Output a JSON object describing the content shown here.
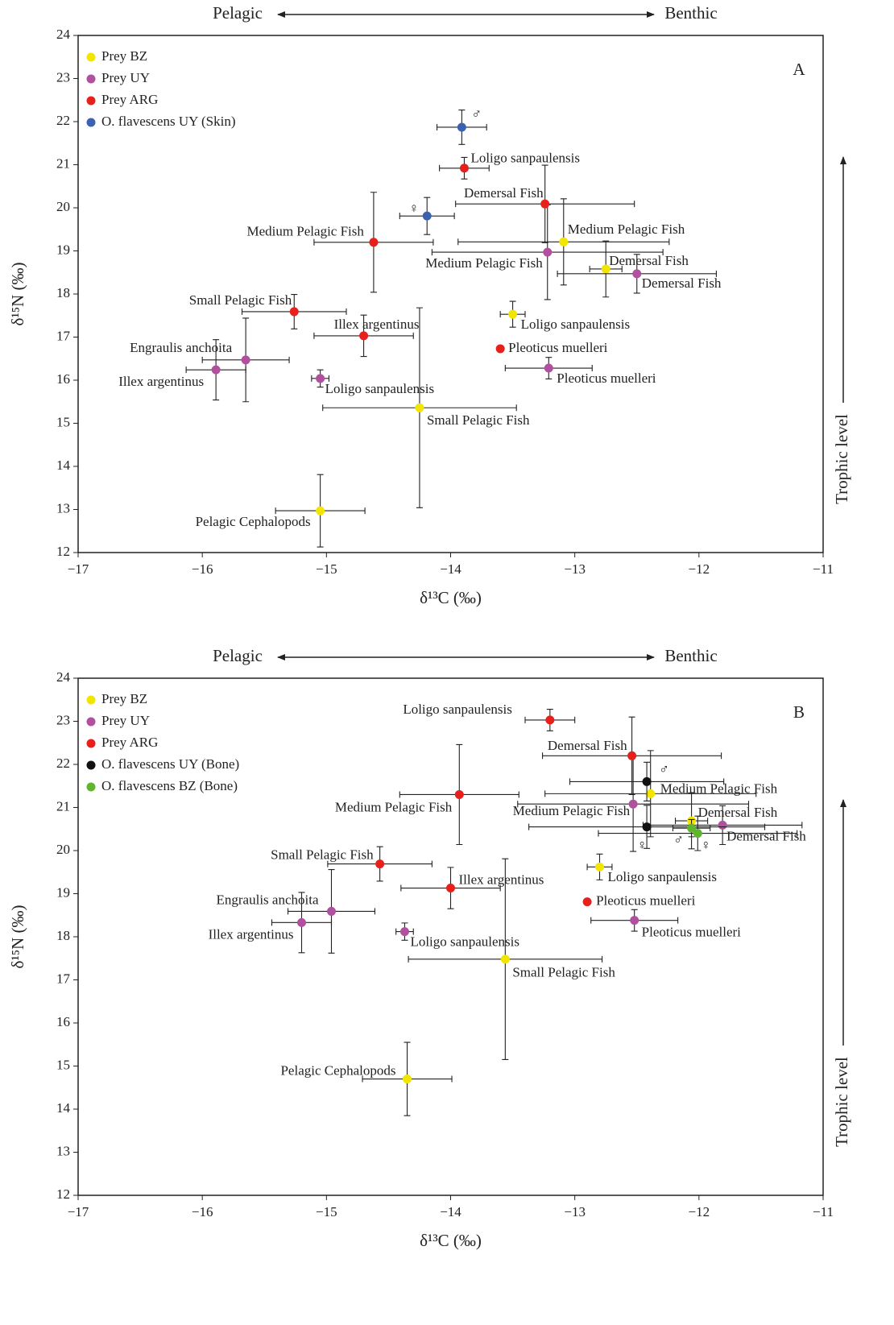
{
  "chart_data": [
    {
      "type": "scatter",
      "panel": "A",
      "x_label": "δ¹³C (‰)",
      "y_label": "δ¹⁵N (‰)",
      "left_annotation": "Pelagic",
      "right_annotation": "Benthic",
      "side_annotation": "Trophic level",
      "legend": "upper left",
      "xlim": [
        -17,
        -11
      ],
      "ylim": [
        12,
        24
      ],
      "xticks": [
        {
          "value": -17,
          "label": "−17"
        },
        {
          "value": -16,
          "label": "−16"
        },
        {
          "value": -15,
          "label": "−15"
        },
        {
          "value": -14,
          "label": "−14"
        },
        {
          "value": -13,
          "label": "−13"
        },
        {
          "value": -12,
          "label": "−12"
        },
        {
          "value": -11,
          "label": "−11"
        }
      ],
      "yticks": [
        12,
        13,
        14,
        15,
        16,
        17,
        18,
        19,
        20,
        21,
        22,
        23,
        24
      ],
      "series": [
        {
          "name": "Prey BZ",
          "color": "#f2e600",
          "labels": [
            "Medium Pelagic Fish",
            "Demersal Fish",
            "Loligo sanpaulensis",
            "Small Pelagic Fish",
            "Pelagic Cephalopods"
          ],
          "x": [
            -13.09,
            -12.75,
            -13.5,
            -14.25,
            -15.05
          ],
          "values": [
            19.21,
            18.58,
            17.53,
            15.36,
            12.97
          ],
          "xerr": [
            0.85,
            0.13,
            0.1,
            0.78,
            0.36
          ],
          "yerr": [
            1.0,
            0.65,
            0.3,
            2.32,
            0.84
          ]
        },
        {
          "name": "Prey UY",
          "color": "#b0509e",
          "labels": [
            "Medium Pelagic Fish",
            "Demersal  Fish",
            "Pleoticus muelleri",
            "Loligo sanpaulensis",
            "Engraulis anchoita",
            "Illex argentinus"
          ],
          "x": [
            -13.22,
            -12.5,
            -13.21,
            -15.05,
            -15.65,
            -15.89
          ],
          "values": [
            18.97,
            18.47,
            16.28,
            16.04,
            16.47,
            16.24
          ],
          "xerr": [
            0.93,
            0.64,
            0.35,
            0.07,
            0.35,
            0.24
          ],
          "yerr": [
            1.1,
            0.45,
            0.25,
            0.2,
            0.97,
            0.7
          ]
        },
        {
          "name": "Prey ARG",
          "color": "#e8201c",
          "labels": [
            "Loligo sanpaulensis",
            "Demersal Fish",
            "Medium Pelagic Fish",
            "Small Pelagic Fish",
            "Illex argentinus",
            "Pleoticus muelleri"
          ],
          "x": [
            -13.89,
            -13.24,
            -14.62,
            -15.26,
            -14.7,
            -13.6
          ],
          "values": [
            20.92,
            20.09,
            19.2,
            17.59,
            17.03,
            16.73
          ],
          "xerr": [
            0.2,
            0.72,
            0.48,
            0.42,
            0.4,
            null
          ],
          "yerr": [
            0.25,
            0.9,
            1.16,
            0.4,
            0.48,
            null
          ]
        },
        {
          "name": "O. flavescens UY (Skin)",
          "color": "#3a62b0",
          "labels": [
            "♂",
            "♀"
          ],
          "x": [
            -13.91,
            -14.19
          ],
          "values": [
            21.87,
            19.81
          ],
          "xerr": [
            0.2,
            0.22
          ],
          "yerr": [
            0.4,
            0.43
          ]
        }
      ]
    },
    {
      "type": "scatter",
      "panel": "B",
      "x_label": "δ¹³C (‰)",
      "y_label": "δ¹⁵N (‰)",
      "left_annotation": "Pelagic",
      "right_annotation": "Benthic",
      "side_annotation": "Trophic level",
      "legend": "upper left",
      "xlim": [
        -17,
        -11
      ],
      "ylim": [
        12,
        24
      ],
      "xticks": [
        {
          "value": -17,
          "label": "−17"
        },
        {
          "value": -16,
          "label": "−16"
        },
        {
          "value": -15,
          "label": "−15"
        },
        {
          "value": -14,
          "label": "−14"
        },
        {
          "value": -13,
          "label": "−13"
        },
        {
          "value": -12,
          "label": "−12"
        },
        {
          "value": -11,
          "label": "−11"
        }
      ],
      "yticks": [
        12,
        13,
        14,
        15,
        16,
        17,
        18,
        19,
        20,
        21,
        22,
        23,
        24
      ],
      "series": [
        {
          "name": "Prey BZ",
          "color": "#f2e600",
          "labels": [
            "Medium Pelagic Fish",
            "Demersal Fish",
            "Loligo sanpaulensis",
            "Small Pelagic Fish",
            "Pelagic Cephalopods"
          ],
          "x": [
            -12.39,
            -12.06,
            -12.8,
            -13.56,
            -14.35
          ],
          "values": [
            21.32,
            20.69,
            19.62,
            17.48,
            14.7
          ],
          "xerr": [
            0.85,
            0.13,
            0.1,
            0.78,
            0.36
          ],
          "yerr": [
            1.0,
            0.65,
            0.3,
            2.33,
            0.85
          ]
        },
        {
          "name": "Prey UY",
          "color": "#b0509e",
          "labels": [
            "Medium Pelagic Fish",
            "Demersal  Fish",
            "Pleoticus muelleri",
            "Loligo sanpaulensis",
            "Engraulis anchoita",
            "Illex argentinus"
          ],
          "x": [
            -12.53,
            -11.81,
            -12.52,
            -14.37,
            -14.96,
            -15.2
          ],
          "values": [
            21.08,
            20.59,
            18.38,
            18.12,
            18.59,
            18.33
          ],
          "xerr": [
            0.93,
            0.64,
            0.35,
            0.07,
            0.35,
            0.24
          ],
          "yerr": [
            1.1,
            0.45,
            0.25,
            0.2,
            0.97,
            0.7
          ]
        },
        {
          "name": "Prey ARG",
          "color": "#e8201c",
          "labels": [
            "Loligo sanpaulensis",
            "Demersal Fish",
            "Medium Pelagic Fish",
            "Small Pelagic Fish",
            "Illex argentinus",
            "Pleoticus muelleri"
          ],
          "x": [
            -13.2,
            -12.54,
            -13.93,
            -14.57,
            -14.0,
            -12.9
          ],
          "values": [
            23.03,
            22.2,
            21.3,
            19.69,
            19.13,
            18.81
          ],
          "xerr": [
            0.2,
            0.72,
            0.48,
            0.42,
            0.4,
            null
          ],
          "yerr": [
            0.25,
            0.9,
            1.16,
            0.4,
            0.48,
            null
          ]
        },
        {
          "name": "O. flavescens UY (Bone)",
          "color": "#111111",
          "labels": [
            "♂",
            "♀"
          ],
          "x": [
            -12.42,
            -12.42
          ],
          "values": [
            21.6,
            20.55
          ],
          "xerr": [
            0.62,
            0.95
          ],
          "yerr": [
            0.45,
            0.5
          ]
        },
        {
          "name": "O. flavescens BZ (Bone)",
          "color": "#5fb52e",
          "labels": [
            "♂",
            "♀"
          ],
          "x": [
            -12.06,
            -12.01
          ],
          "values": [
            20.52,
            20.4
          ],
          "xerr": [
            0.15,
            0.8
          ],
          "yerr": [
            0.2,
            0.4
          ]
        }
      ]
    }
  ]
}
